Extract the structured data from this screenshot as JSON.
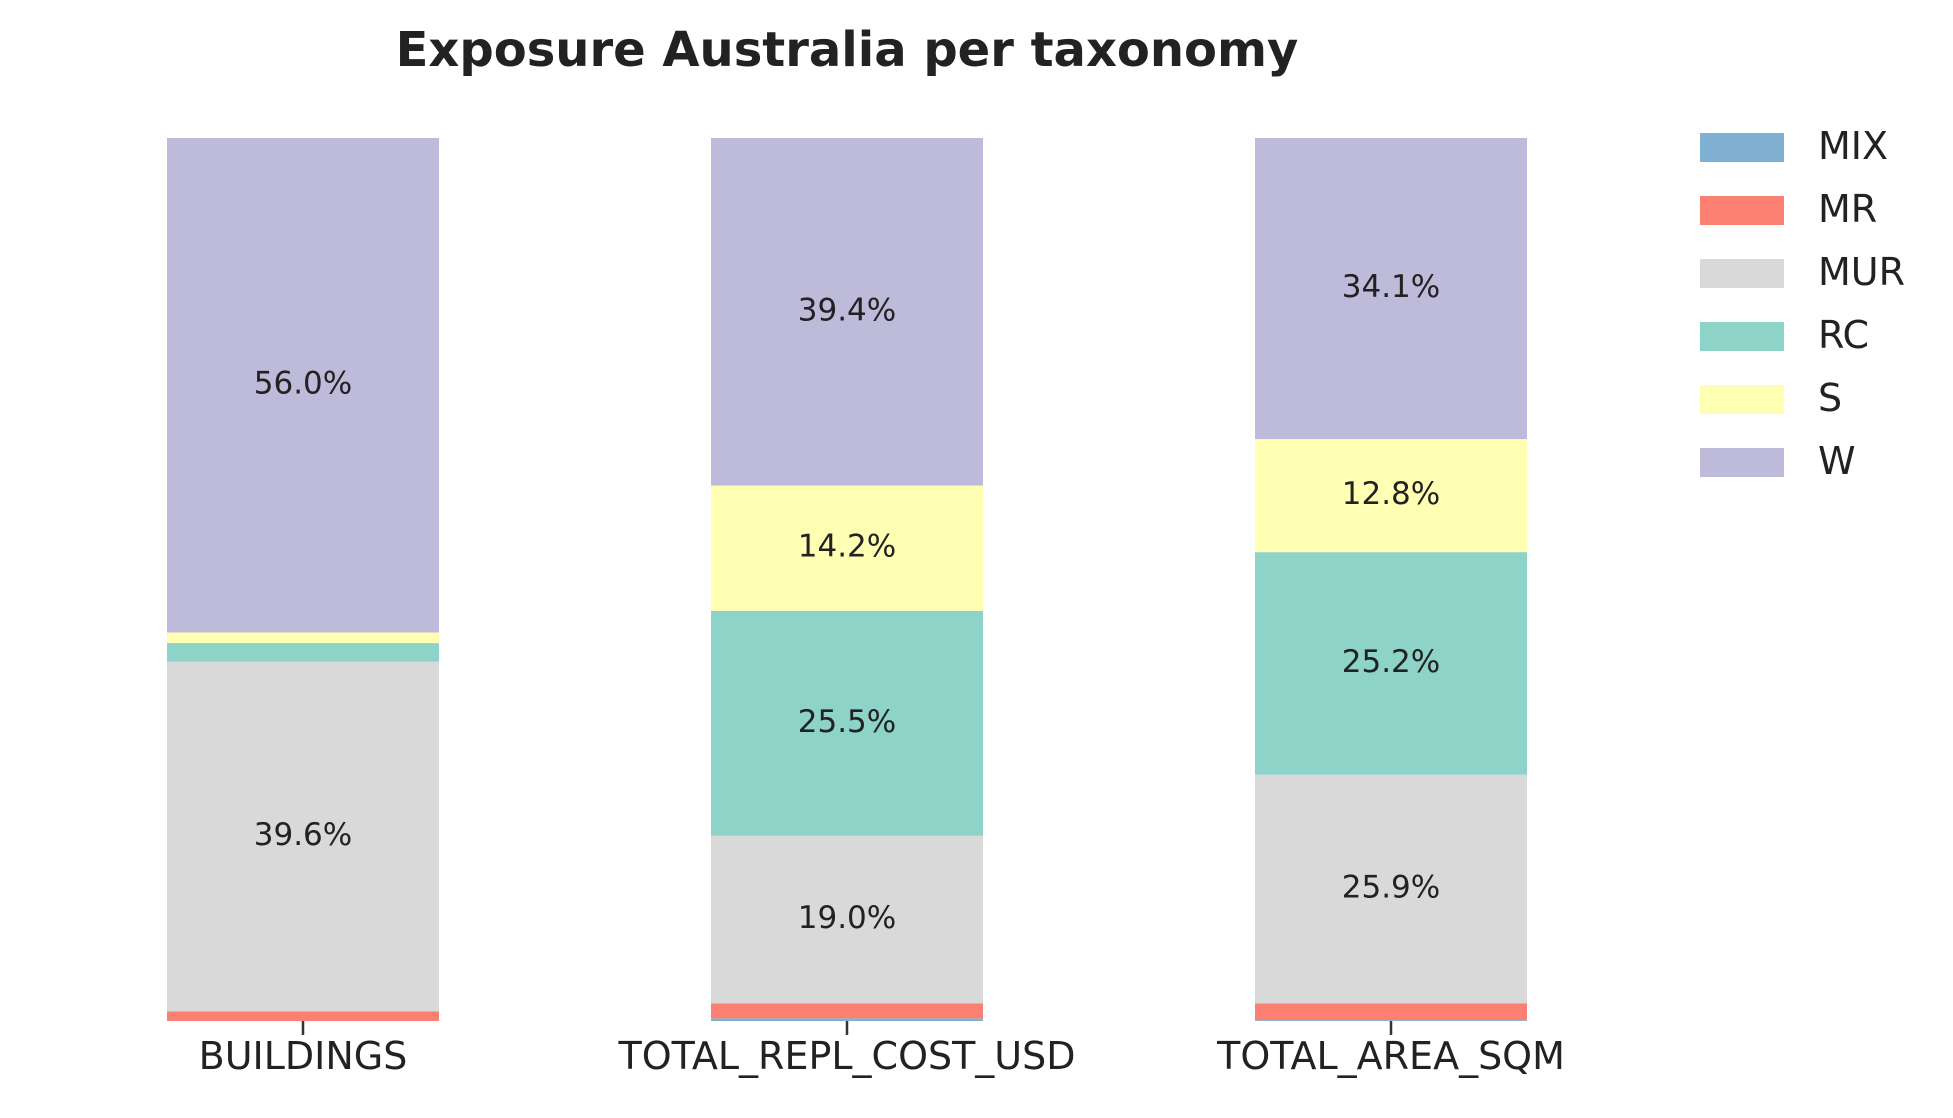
{
  "chart_data": {
    "type": "bar",
    "stacked": true,
    "normalized_percent": true,
    "title": "Exposure Australia per taxonomy",
    "xlabel": "",
    "ylabel": "",
    "ylim": [
      0,
      100
    ],
    "grid": false,
    "legend_position": "top-right, outside plot",
    "categories": [
      "BUILDINGS",
      "TOTAL_REPL_COST_USD",
      "TOTAL_AREA_SQM"
    ],
    "series": [
      {
        "name": "MIX",
        "color": "#80b1d3",
        "values": [
          0.0,
          0.3,
          0.1
        ]
      },
      {
        "name": "MR",
        "color": "#fb8072",
        "values": [
          1.1,
          1.7,
          1.9
        ]
      },
      {
        "name": "MUR",
        "color": "#d9d9d9",
        "values": [
          39.6,
          19.0,
          25.9
        ]
      },
      {
        "name": "RC",
        "color": "#8dd3c7",
        "values": [
          2.1,
          25.5,
          25.2
        ]
      },
      {
        "name": "S",
        "color": "#ffffb3",
        "values": [
          1.2,
          14.2,
          12.8
        ]
      },
      {
        "name": "W",
        "color": "#bebada",
        "values": [
          56.0,
          39.4,
          34.1
        ]
      }
    ],
    "data_labels": [
      [
        "",
        "",
        "39.6%",
        "",
        "",
        "56.0%"
      ],
      [
        "",
        "",
        "19.0%",
        "25.5%",
        "14.2%",
        "39.4%"
      ],
      [
        "",
        "",
        "25.9%",
        "25.2%",
        "12.8%",
        "34.1%"
      ]
    ]
  }
}
